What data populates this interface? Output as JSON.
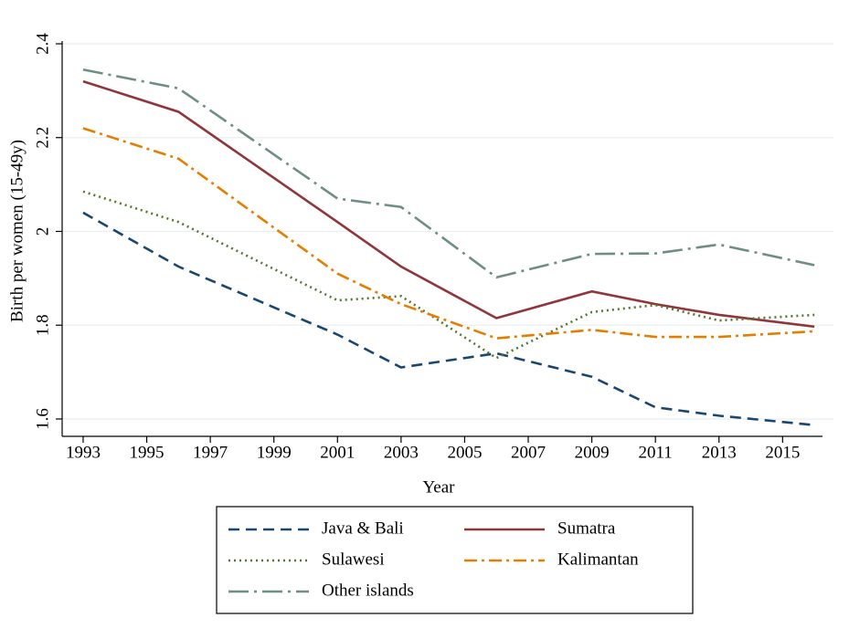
{
  "chart_data": {
    "type": "line",
    "x_label": "Year",
    "y_label": "Birth per women (15-49y)",
    "x": [
      1993,
      1996,
      2001,
      2003,
      2006,
      2009,
      2011,
      2013,
      2016
    ],
    "series": [
      {
        "name": "Java & Bali",
        "color": "#1a476f",
        "dash": "dash",
        "values": [
          2.04,
          1.925,
          1.78,
          1.71,
          1.74,
          1.69,
          1.625,
          1.607,
          1.587
        ]
      },
      {
        "name": "Sumatra",
        "color": "#90353b",
        "dash": "solid",
        "values": [
          2.32,
          2.255,
          2.02,
          1.925,
          1.815,
          1.872,
          1.845,
          1.822,
          1.797
        ]
      },
      {
        "name": "Sulawesi",
        "color": "#55752f",
        "dash": "dot",
        "values": [
          2.085,
          2.02,
          1.853,
          1.862,
          1.73,
          1.828,
          1.843,
          1.81,
          1.822
        ]
      },
      {
        "name": "Kalimantan",
        "color": "#e37e00",
        "dash": "dashdot",
        "values": [
          2.22,
          2.155,
          1.91,
          1.845,
          1.772,
          1.79,
          1.775,
          1.775,
          1.787
        ]
      },
      {
        "name": "Other islands",
        "color": "#6e8e84",
        "dash": "longdashdot",
        "values": [
          2.345,
          2.305,
          2.07,
          2.052,
          1.902,
          1.952,
          1.953,
          1.972,
          1.928
        ]
      }
    ],
    "xlim": [
      1992.34,
      2016.6
    ],
    "ylim": [
      1.563,
      2.435
    ],
    "xticks": [
      1993,
      1995,
      1997,
      1999,
      2001,
      2003,
      2005,
      2007,
      2009,
      2011,
      2013,
      2015
    ],
    "yticks": [
      1.6,
      1.8,
      2,
      2.2,
      2.4
    ],
    "grid": true,
    "legend": "bottom"
  }
}
